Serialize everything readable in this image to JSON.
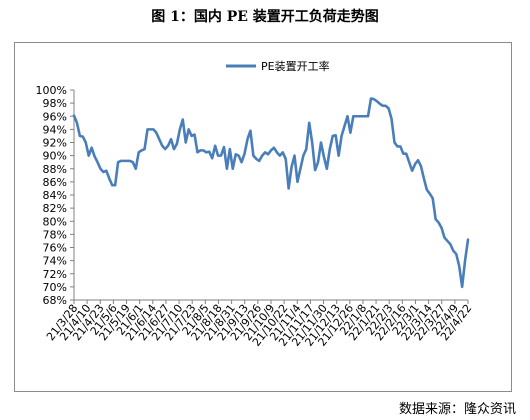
{
  "title": "图 1：国内 PE 装置开工负荷走势图",
  "source": "数据来源：隆众资讯",
  "chart_data": {
    "type": "line",
    "title": "",
    "xlabel": "",
    "ylabel": "",
    "ylim": [
      68,
      100
    ],
    "y_tick_step": 2,
    "y_format": "percent",
    "grid": "none",
    "legend_position": "top-center",
    "series": [
      {
        "name": "PE装置开工率",
        "color": "#4a7ebb",
        "values": [
          96.1,
          95.0,
          93.0,
          92.9,
          92.0,
          90.0,
          91.2,
          89.9,
          89.0,
          88.0,
          87.5,
          87.7,
          86.5,
          85.5,
          85.5,
          89.0,
          89.2,
          89.2,
          89.2,
          89.2,
          89.0,
          88.0,
          90.5,
          90.8,
          91.0,
          94.0,
          94.0,
          94.0,
          93.5,
          92.5,
          91.5,
          91.0,
          91.5,
          92.5,
          91.0,
          91.8,
          94.0,
          95.5,
          92.0,
          94.0,
          93.0,
          93.2,
          90.5,
          90.8,
          90.8,
          90.5,
          90.6,
          89.6,
          91.5,
          90.0,
          90.0,
          91.3,
          88.0,
          91.0,
          88.0,
          90.2,
          90.0,
          89.0,
          90.3,
          92.5,
          93.8,
          90.0,
          89.5,
          89.2,
          90.0,
          90.5,
          90.2,
          90.8,
          91.2,
          90.5,
          90.0,
          90.5,
          89.5,
          85.0,
          88.3,
          90.0,
          86.0,
          88.0,
          90.0,
          91.0,
          95.0,
          92.0,
          87.8,
          89.0,
          92.0,
          89.8,
          88.0,
          91.0,
          93.0,
          93.1,
          90.0,
          93.0,
          94.5,
          96.0,
          93.5,
          96.0,
          96.0,
          96.0,
          96.0,
          96.0,
          96.0,
          98.7,
          98.6,
          98.3,
          97.9,
          97.6,
          97.6,
          97.2,
          95.6,
          92.0,
          91.4,
          91.4,
          90.3,
          90.3,
          89.0,
          87.7,
          88.7,
          89.3,
          88.4,
          86.5,
          84.8,
          84.2,
          83.5,
          80.3,
          79.8,
          79.0,
          77.5,
          77.0,
          76.5,
          75.5,
          75.0,
          73.2,
          70.0,
          74.0,
          77.2
        ]
      }
    ],
    "x_tick_labels": [
      "21/3/28",
      "21/4/10",
      "21/4/23",
      "21/5/6",
      "21/5/19",
      "21/6/1",
      "21/6/14",
      "21/6/27",
      "21/7/10",
      "21/7/23",
      "21/8/5",
      "21/8/18",
      "21/8/31",
      "21/9/13",
      "21/9/26",
      "21/10/9",
      "21/10/22",
      "21/11/4",
      "21/11/17",
      "21/11/30",
      "21/12/13",
      "21/12/26",
      "22/1/8",
      "22/1/21",
      "22/2/3",
      "22/2/16",
      "22/3/1",
      "22/3/14",
      "22/3/27",
      "22/4/9",
      "22/4/22"
    ]
  }
}
